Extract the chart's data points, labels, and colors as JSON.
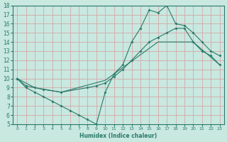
{
  "xlabel": "Humidex (Indice chaleur)",
  "xlim": [
    -0.5,
    23.5
  ],
  "ylim": [
    5,
    18
  ],
  "xticks": [
    0,
    1,
    2,
    3,
    4,
    5,
    6,
    7,
    8,
    9,
    10,
    11,
    12,
    13,
    14,
    15,
    16,
    17,
    18,
    19,
    20,
    21,
    22,
    23
  ],
  "yticks": [
    5,
    6,
    7,
    8,
    9,
    10,
    11,
    12,
    13,
    14,
    15,
    16,
    17,
    18
  ],
  "bg_color": "#c8e8e0",
  "line_color": "#2a7a6a",
  "grid_color": "#d4a8a8",
  "line1_x": [
    0,
    1,
    2,
    3,
    4,
    5,
    6,
    7,
    8,
    9,
    10,
    11,
    12,
    13,
    14,
    15,
    16,
    17,
    18,
    19,
    20,
    21,
    22,
    23
  ],
  "line1_y": [
    10,
    9,
    8.5,
    8,
    7.5,
    7,
    6.5,
    6,
    5.5,
    5,
    8.5,
    10.5,
    11.5,
    14,
    15.5,
    17.5,
    17.2,
    18,
    16,
    15.8,
    15,
    14,
    13,
    12.5
  ],
  "line2_x": [
    0,
    1,
    2,
    3,
    5,
    8,
    9,
    10,
    11,
    12,
    13,
    14,
    15,
    16,
    17,
    18,
    19,
    20,
    21,
    22,
    23
  ],
  "line2_y": [
    10,
    9.2,
    9,
    8.8,
    8.5,
    9,
    9.2,
    9.5,
    10.2,
    11,
    12,
    13,
    14,
    14.5,
    15,
    15.5,
    15.5,
    14,
    13,
    12.5,
    11.5
  ],
  "line3_x": [
    0,
    2,
    5,
    10,
    16,
    20,
    23
  ],
  "line3_y": [
    10,
    9,
    8.5,
    9.8,
    14,
    14,
    11.5
  ]
}
